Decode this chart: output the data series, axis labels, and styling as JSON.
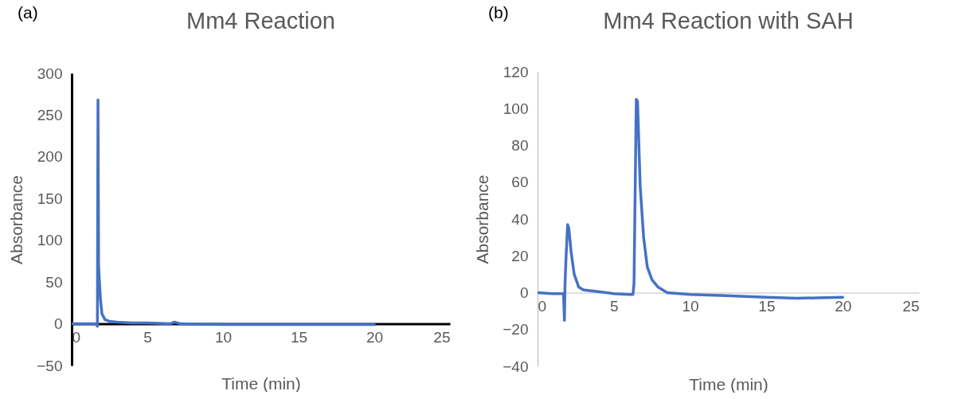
{
  "chart_data": [
    {
      "type": "line",
      "title": "Mm4 Reaction",
      "xlabel": "Time (min)",
      "ylabel": "Absorbance",
      "annotations": [
        "(a)"
      ],
      "xlim": [
        0,
        25
      ],
      "ylim": [
        -50,
        300
      ],
      "xticks": [
        0,
        5,
        10,
        15,
        20,
        25
      ],
      "yticks": [
        -50,
        0,
        50,
        100,
        150,
        200,
        250,
        300
      ],
      "grid": false,
      "marker": "none",
      "line_style": "solid",
      "series": [
        {
          "color": "#4472c4",
          "x": [
            0,
            1.6,
            1.7,
            1.74,
            1.78,
            1.82,
            1.9,
            2.0,
            2.2,
            2.5,
            3,
            4,
            5,
            6.5,
            6.8,
            7.2,
            10,
            14,
            17,
            20
          ],
          "values": [
            0,
            0,
            -3,
            268,
            70,
            55,
            30,
            12,
            5,
            3,
            2,
            1,
            1,
            0,
            2,
            0,
            -1,
            -1,
            -1,
            -1
          ]
        }
      ]
    },
    {
      "type": "line",
      "title": "Mm4 Reaction with SAH",
      "xlabel": "Time (min)",
      "ylabel": "Absorbance",
      "annotations": [
        "(b)"
      ],
      "xlim": [
        0,
        25
      ],
      "ylim": [
        -40,
        120
      ],
      "xticks": [
        0,
        5,
        10,
        15,
        20,
        25
      ],
      "yticks": [
        -40,
        -20,
        0,
        20,
        40,
        60,
        80,
        100,
        120
      ],
      "grid": false,
      "marker": "none",
      "line_style": "solid",
      "series": [
        {
          "color": "#4472c4",
          "x": [
            0,
            1.0,
            1.7,
            1.76,
            1.8,
            1.87,
            1.97,
            2.05,
            2.2,
            2.4,
            2.7,
            3.0,
            4.0,
            5.0,
            6.0,
            6.25,
            6.32,
            6.47,
            6.55,
            6.73,
            6.95,
            7.19,
            7.5,
            7.9,
            8.5,
            10,
            12,
            15,
            17,
            20
          ],
          "values": [
            0,
            -0.5,
            -0.5,
            -15,
            5,
            20,
            37,
            35,
            22,
            10,
            3,
            1.5,
            0.5,
            -0.5,
            -1,
            -1,
            5,
            105,
            104,
            57,
            30,
            14,
            7,
            3,
            0,
            -1,
            -1.5,
            -2.5,
            -3,
            -2.5
          ]
        }
      ]
    }
  ]
}
